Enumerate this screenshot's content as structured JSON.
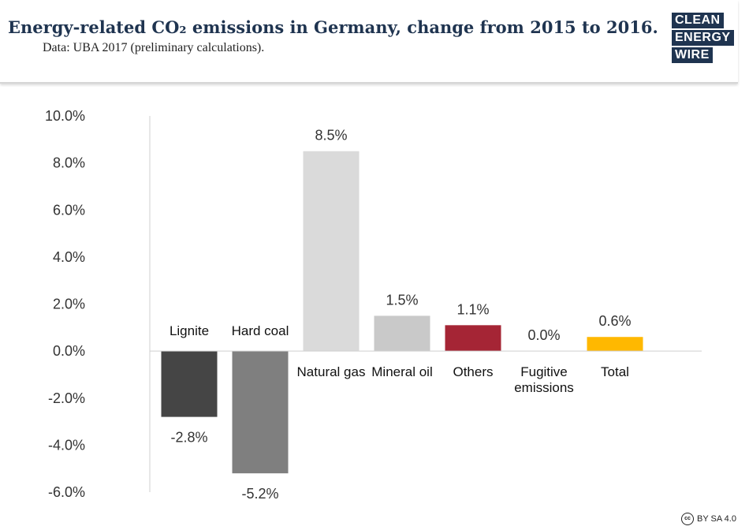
{
  "header": {
    "title": "Energy-related CO₂ emissions in Germany, change from 2015 to 2016.",
    "subtitle": "Data: UBA 2017 (preliminary calculations)."
  },
  "logo": {
    "line1": "CLEAN",
    "line2": "ENERGY",
    "line3": "WIRE"
  },
  "license": {
    "icon": "cc-icon",
    "text": "BY SA 4.0"
  },
  "colors": {
    "lignite": "#454545",
    "hard_coal": "#7f7f7f",
    "natural_gas": "#dadada",
    "mineral_oil": "#c9c9c9",
    "others": "#a52535",
    "fugitive": "#cccccc",
    "total": "#ffb800",
    "axis": "#cfcfcf",
    "brand": "#1f3450"
  },
  "chart_data": {
    "type": "bar",
    "title": "Energy-related CO₂ emissions in Germany, change from 2015 to 2016.",
    "xlabel": "",
    "ylabel": "",
    "ylim": [
      -6,
      10
    ],
    "yticks": [
      "10.0%",
      "8.0%",
      "6.0%",
      "4.0%",
      "2.0%",
      "0.0%",
      "-2.0%",
      "-4.0%",
      "-6.0%"
    ],
    "ytick_values": [
      10,
      8,
      6,
      4,
      2,
      0,
      -2,
      -4,
      -6
    ],
    "grid": false,
    "categories": [
      [
        "Lignite"
      ],
      [
        "Hard coal"
      ],
      [
        "Natural gas"
      ],
      [
        "Mineral oil"
      ],
      [
        "Others"
      ],
      [
        "Fugitive",
        "emissions"
      ],
      [
        "Total"
      ]
    ],
    "values": [
      -2.8,
      -5.2,
      8.5,
      1.5,
      1.1,
      0.0,
      0.6
    ],
    "value_labels": [
      "-2.8%",
      "-5.2%",
      "8.5%",
      "1.5%",
      "1.1%",
      "0.0%",
      "0.6%"
    ],
    "series_color_keys": [
      "lignite",
      "hard_coal",
      "natural_gas",
      "mineral_oil",
      "others",
      "fugitive",
      "total"
    ]
  }
}
